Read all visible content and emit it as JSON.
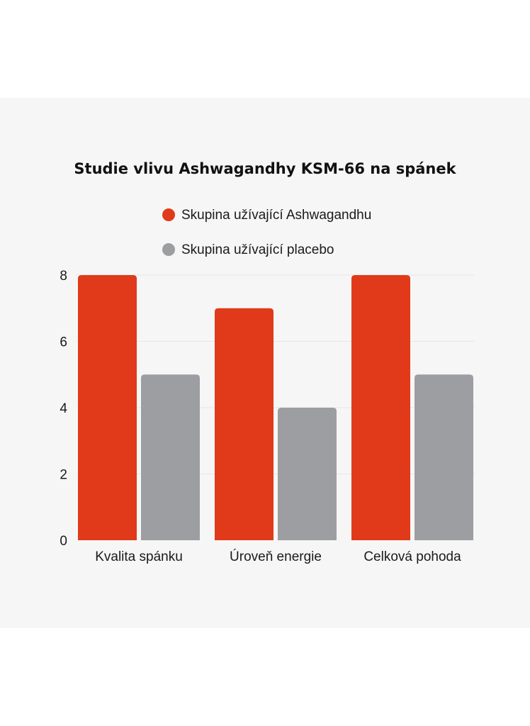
{
  "colors": {
    "background": "#f6f6f6",
    "ashwagandha": "#e03a1a",
    "placebo": "#9d9ea1"
  },
  "chart_data": {
    "type": "bar",
    "title": "Studie vlivu Ashwagandhy KSM-66 na spánek",
    "categories": [
      "Kvalita spánku",
      "Úroveň energie",
      "Celková pohoda"
    ],
    "series": [
      {
        "name": "Skupina užívající Ashwagandhu",
        "values": [
          8,
          7,
          8
        ],
        "color": "#e03a1a"
      },
      {
        "name": "Skupina užívající placebo",
        "values": [
          5,
          4,
          5
        ],
        "color": "#9d9ea1"
      }
    ],
    "ylim": [
      0,
      8
    ],
    "yticks": [
      "0",
      "2",
      "4",
      "6",
      "8"
    ],
    "grid": true,
    "legend_position": "top-center"
  }
}
